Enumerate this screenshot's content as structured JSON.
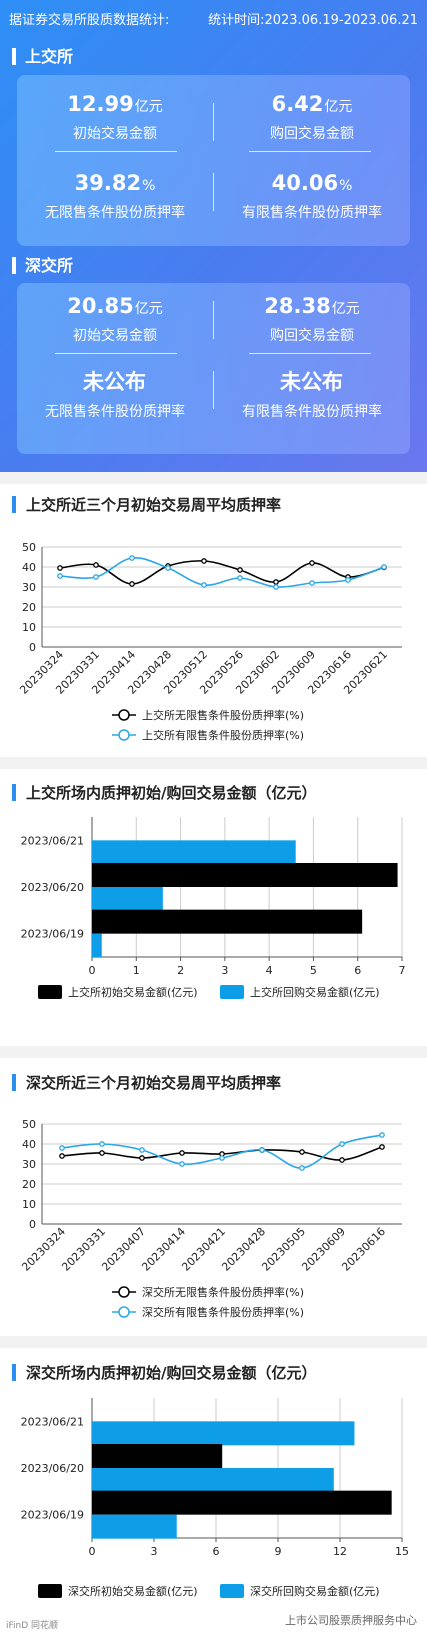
{
  "header": {
    "left": "据证券交易所股质数据统计:",
    "right": "统计时间:2023.06.19-2023.06.21"
  },
  "sse": {
    "title": "上交所",
    "cells": [
      {
        "value": "12.99",
        "unit": "亿元",
        "label": "初始交易金额"
      },
      {
        "value": "6.42",
        "unit": "亿元",
        "label": "购回交易金额"
      },
      {
        "value": "39.82",
        "unit": "%",
        "label": "无限售条件股份质押率"
      },
      {
        "value": "40.06",
        "unit": "%",
        "label": "有限售条件股份质押率"
      }
    ]
  },
  "szse": {
    "title": "深交所",
    "cells": [
      {
        "value": "20.85",
        "unit": "亿元",
        "label": "初始交易金额"
      },
      {
        "value": "28.38",
        "unit": "亿元",
        "label": "购回交易金额"
      },
      {
        "value": "未公布",
        "unit": "",
        "label": "无限售条件股份质押率"
      },
      {
        "value": "未公布",
        "unit": "",
        "label": "有限售条件股份质押率"
      }
    ]
  },
  "watermark": {
    "left": "iFinD 同花顺",
    "right": "上市公司股票质押服务中心"
  },
  "chart_data": [
    {
      "type": "line",
      "title": "上交所近三个月初始交易周平均质押率",
      "categories": [
        "20230324",
        "20230331",
        "20230414",
        "20230428",
        "20230512",
        "20230526",
        "20230602",
        "20230609",
        "20230616",
        "20230621"
      ],
      "series": [
        {
          "name": "上交所无限售条件股份质押率(%)",
          "color": "#000000",
          "values": [
            39.5,
            41,
            31.5,
            40.5,
            43,
            38.5,
            32.5,
            42,
            35,
            39.8
          ]
        },
        {
          "name": "上交所有限售条件股份质押率(%)",
          "color": "#2aa7e6",
          "values": [
            35.5,
            35,
            44.5,
            39.5,
            31,
            34.5,
            30,
            32,
            33.5,
            40
          ]
        }
      ],
      "ylim": [
        0,
        50
      ],
      "yticks": [
        0,
        10,
        20,
        30,
        40,
        50
      ],
      "grid": true,
      "legend": "bottom"
    },
    {
      "type": "bar",
      "orientation": "horizontal",
      "title": "上交所场内质押初始/购回交易金额（亿元）",
      "categories": [
        "2023/06/21",
        "2023/06/20",
        "2023/06/19"
      ],
      "series": [
        {
          "name": "上交所初始交易金额(亿元)",
          "color": "#000000",
          "values": [
            0,
            6.9,
            6.1
          ]
        },
        {
          "name": "上交所回购交易金额(亿元)",
          "color": "#0e9ee8",
          "values": [
            4.6,
            1.6,
            0.22
          ]
        }
      ],
      "xlim": [
        0,
        7
      ],
      "xticks": [
        0,
        1,
        2,
        3,
        4,
        5,
        6,
        7
      ],
      "grid": true,
      "legend": "bottom"
    },
    {
      "type": "line",
      "title": "深交所近三个月初始交易周平均质押率",
      "categories": [
        "20230324",
        "20230331",
        "20230407",
        "20230414",
        "20230421",
        "20230428",
        "20230505",
        "20230609",
        "20230616"
      ],
      "series": [
        {
          "name": "深交所无限售条件股份质押率(%)",
          "color": "#000000",
          "values": [
            34,
            35.5,
            33,
            35.5,
            35,
            37,
            36,
            32,
            38.5
          ]
        },
        {
          "name": "深交所有限售条件股份质押率(%)",
          "color": "#2aa7e6",
          "values": [
            38,
            40,
            37,
            30,
            33,
            37,
            28,
            40,
            44.5
          ]
        }
      ],
      "ylim": [
        0,
        50
      ],
      "yticks": [
        0,
        10,
        20,
        30,
        40,
        50
      ],
      "grid": true,
      "legend": "bottom"
    },
    {
      "type": "bar",
      "orientation": "horizontal",
      "title": "深交所场内质押初始/购回交易金额（亿元）",
      "categories": [
        "2023/06/21",
        "2023/06/20",
        "2023/06/19"
      ],
      "series": [
        {
          "name": "深交所初始交易金额(亿元)",
          "color": "#000000",
          "values": [
            0,
            6.3,
            14.5
          ]
        },
        {
          "name": "深交所回购交易金额(亿元)",
          "color": "#0e9ee8",
          "values": [
            12.7,
            11.7,
            4.1
          ]
        }
      ],
      "xlim": [
        0,
        15
      ],
      "xticks": [
        0,
        3,
        6,
        9,
        12,
        15
      ],
      "grid": true,
      "legend": "bottom"
    }
  ]
}
